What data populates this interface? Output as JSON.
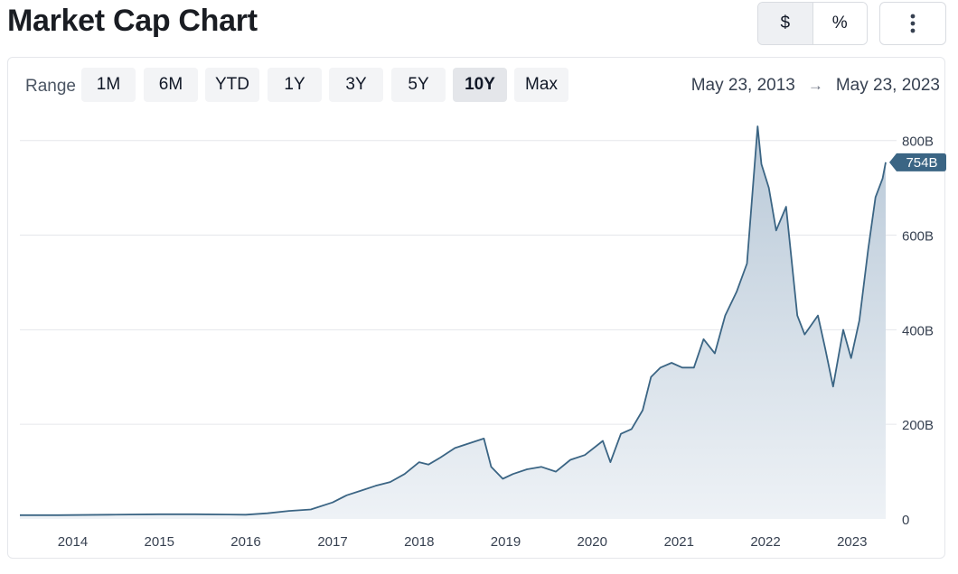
{
  "header": {
    "title": "Market Cap Chart",
    "unit_options": [
      "$",
      "%"
    ],
    "active_unit": "$",
    "more_icon": "vertical-ellipsis-icon"
  },
  "controls": {
    "range_label": "Range",
    "ranges": [
      "1M",
      "6M",
      "YTD",
      "1Y",
      "3Y",
      "5Y",
      "10Y",
      "Max"
    ],
    "active_range": "10Y",
    "date_from": "May 23, 2013",
    "date_arrow": "→",
    "date_to": "May 23, 2023"
  },
  "colors": {
    "line": "#3b6584",
    "area_top": "#b9c9d8",
    "area_bottom": "#eef2f6",
    "badge": "#3b6584",
    "grid": "#e5e7eb"
  },
  "chart_data": {
    "type": "area",
    "title": "",
    "xlabel": "",
    "ylabel": "",
    "unit": "B",
    "x_ticks": [
      "2014",
      "2015",
      "2016",
      "2017",
      "2018",
      "2019",
      "2020",
      "2021",
      "2022",
      "2023"
    ],
    "y_ticks": [
      "0",
      "200B",
      "400B",
      "600B",
      "800B"
    ],
    "ylim": [
      0,
      830
    ],
    "xlim": [
      "2013-05-23",
      "2023-05-23"
    ],
    "grid": true,
    "legend": "none",
    "current_value_label": "754B",
    "series": [
      {
        "x": [
          "2013-05-23",
          "2013-11-01",
          "2014-06-01",
          "2015-01-01",
          "2015-06-01",
          "2016-01-01",
          "2016-04-01",
          "2016-07-01",
          "2016-10-01",
          "2017-01-01",
          "2017-03-01",
          "2017-05-01",
          "2017-07-01",
          "2017-09-01",
          "2017-11-01",
          "2018-01-01",
          "2018-02-10",
          "2018-04-01",
          "2018-06-01",
          "2018-08-01",
          "2018-10-01",
          "2018-11-01",
          "2018-12-20",
          "2019-02-01",
          "2019-04-01",
          "2019-06-01",
          "2019-08-01",
          "2019-10-01",
          "2019-12-01",
          "2020-02-15",
          "2020-03-18",
          "2020-05-01",
          "2020-06-15",
          "2020-08-01",
          "2020-09-05",
          "2020-10-15",
          "2020-12-01",
          "2021-01-15",
          "2021-03-05",
          "2021-04-15",
          "2021-06-01",
          "2021-07-15",
          "2021-09-01",
          "2021-10-15",
          "2021-11-29",
          "2021-12-15",
          "2022-01-15",
          "2022-02-15",
          "2022-03-29",
          "2022-05-15",
          "2022-06-15",
          "2022-08-10",
          "2022-09-10",
          "2022-10-13",
          "2022-11-25",
          "2022-12-28",
          "2023-02-01",
          "2023-03-10",
          "2023-04-10",
          "2023-05-10",
          "2023-05-23"
        ],
        "y": [
          8,
          8,
          9,
          10,
          10,
          9,
          12,
          17,
          20,
          35,
          50,
          60,
          70,
          78,
          95,
          120,
          115,
          130,
          150,
          160,
          170,
          110,
          85,
          95,
          105,
          110,
          100,
          125,
          135,
          165,
          120,
          180,
          190,
          230,
          300,
          320,
          330,
          320,
          320,
          380,
          350,
          430,
          480,
          540,
          830,
          750,
          700,
          610,
          660,
          430,
          390,
          430,
          360,
          280,
          400,
          340,
          420,
          570,
          680,
          720,
          754
        ]
      }
    ]
  }
}
